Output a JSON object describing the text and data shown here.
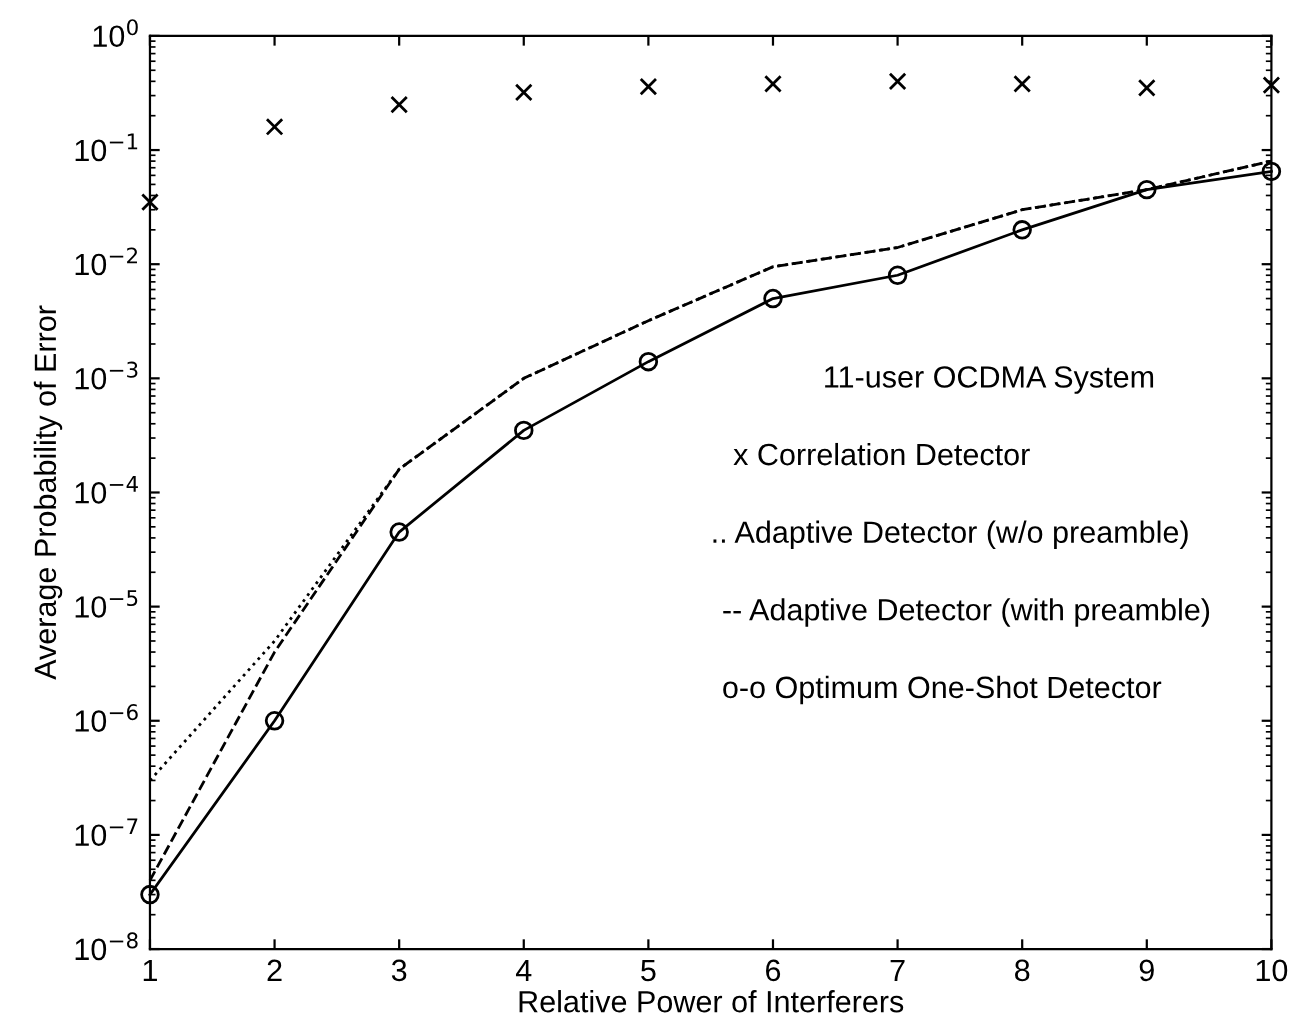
{
  "chart_data": {
    "type": "line",
    "xlabel": "Relative Power of Interferers",
    "ylabel": "Average Probability of Error",
    "x": [
      1,
      2,
      3,
      4,
      5,
      6,
      7,
      8,
      9,
      10
    ],
    "log": "y",
    "grid": false,
    "legend": false,
    "xlim": [
      1,
      10
    ],
    "xticks": [
      1,
      2,
      3,
      4,
      5,
      6,
      7,
      8,
      9,
      10
    ],
    "ylim": [
      1e-08,
      1
    ],
    "yticks": [
      {
        "value": 1e-08,
        "label": "10$^{−8}$"
      },
      {
        "value": 1e-07,
        "label": "10$^{−7}$"
      },
      {
        "value": 1e-06,
        "label": "10$^{−6}$"
      },
      {
        "value": 1e-05,
        "label": "10$^{−5}$"
      },
      {
        "value": 0.0001,
        "label": "10$^{−4}$"
      },
      {
        "value": 0.001,
        "label": "10$^{−3}$"
      },
      {
        "value": 0.01,
        "label": "10$^{−2}$"
      },
      {
        "value": 0.1,
        "label": "10$^{−1}$"
      },
      {
        "value": 1,
        "label": "10$^{0}$"
      }
    ],
    "series": [
      {
        "type": "scatter",
        "marker": "cross",
        "color": "#000000",
        "values": [
          0.035,
          0.16,
          0.25,
          0.32,
          0.36,
          0.38,
          0.4,
          0.38,
          0.35,
          0.37
        ]
      },
      {
        "marker": "none",
        "line_style": "dotted",
        "color": "#000000",
        "values": [
          3e-07,
          5e-06,
          0.00016,
          0.001,
          0.0032,
          0.0095,
          0.014,
          0.03,
          0.045,
          0.08
        ]
      },
      {
        "marker": "none",
        "line_style": "dashed",
        "color": "#000000",
        "values": [
          4e-08,
          4e-06,
          0.00016,
          0.001,
          0.0032,
          0.0095,
          0.014,
          0.03,
          0.045,
          0.08
        ]
      },
      {
        "marker": "circle",
        "line_style": "solid",
        "color": "#000000",
        "values": [
          3e-08,
          1e-06,
          4.5e-05,
          0.00035,
          0.0014,
          0.005,
          0.008,
          0.02,
          0.045,
          0.065
        ]
      }
    ],
    "annotations": [
      "11-user OCDMA System",
      "x Correlation Detector",
      ".. Adaptive Detector (w/o preamble)",
      "-- Adaptive Detector (with preamble)",
      "o-o Optimum One-Shot Detector"
    ]
  }
}
